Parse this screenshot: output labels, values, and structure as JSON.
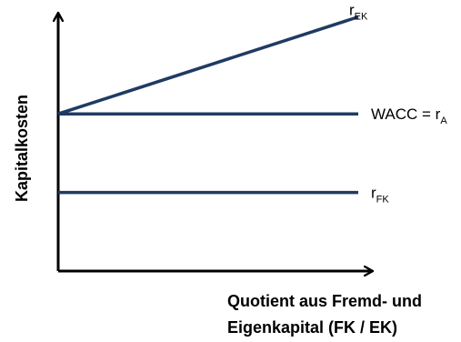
{
  "chart_data": {
    "type": "line",
    "xlabel_lines": [
      "Quotient aus Fremd- und",
      "Eigenkapital (FK / EK)"
    ],
    "ylabel": "Kapitalkosten",
    "xlim": [
      0,
      1
    ],
    "ylim": [
      0,
      1
    ],
    "x": [
      0,
      1
    ],
    "series": [
      {
        "name": "r_EK",
        "name_main": "r",
        "name_sub": "EK",
        "values": [
          0.6,
          0.97
        ],
        "color": "#1f3b63"
      },
      {
        "name": "WACC = r_A",
        "name_main": "WACC = r",
        "name_sub": "A",
        "values": [
          0.6,
          0.6
        ],
        "color": "#1f3b63"
      },
      {
        "name": "r_FK",
        "name_main": "r",
        "name_sub": "FK",
        "values": [
          0.3,
          0.3
        ],
        "color": "#1f3b63"
      }
    ],
    "grid": false,
    "legend": "inline-right"
  }
}
